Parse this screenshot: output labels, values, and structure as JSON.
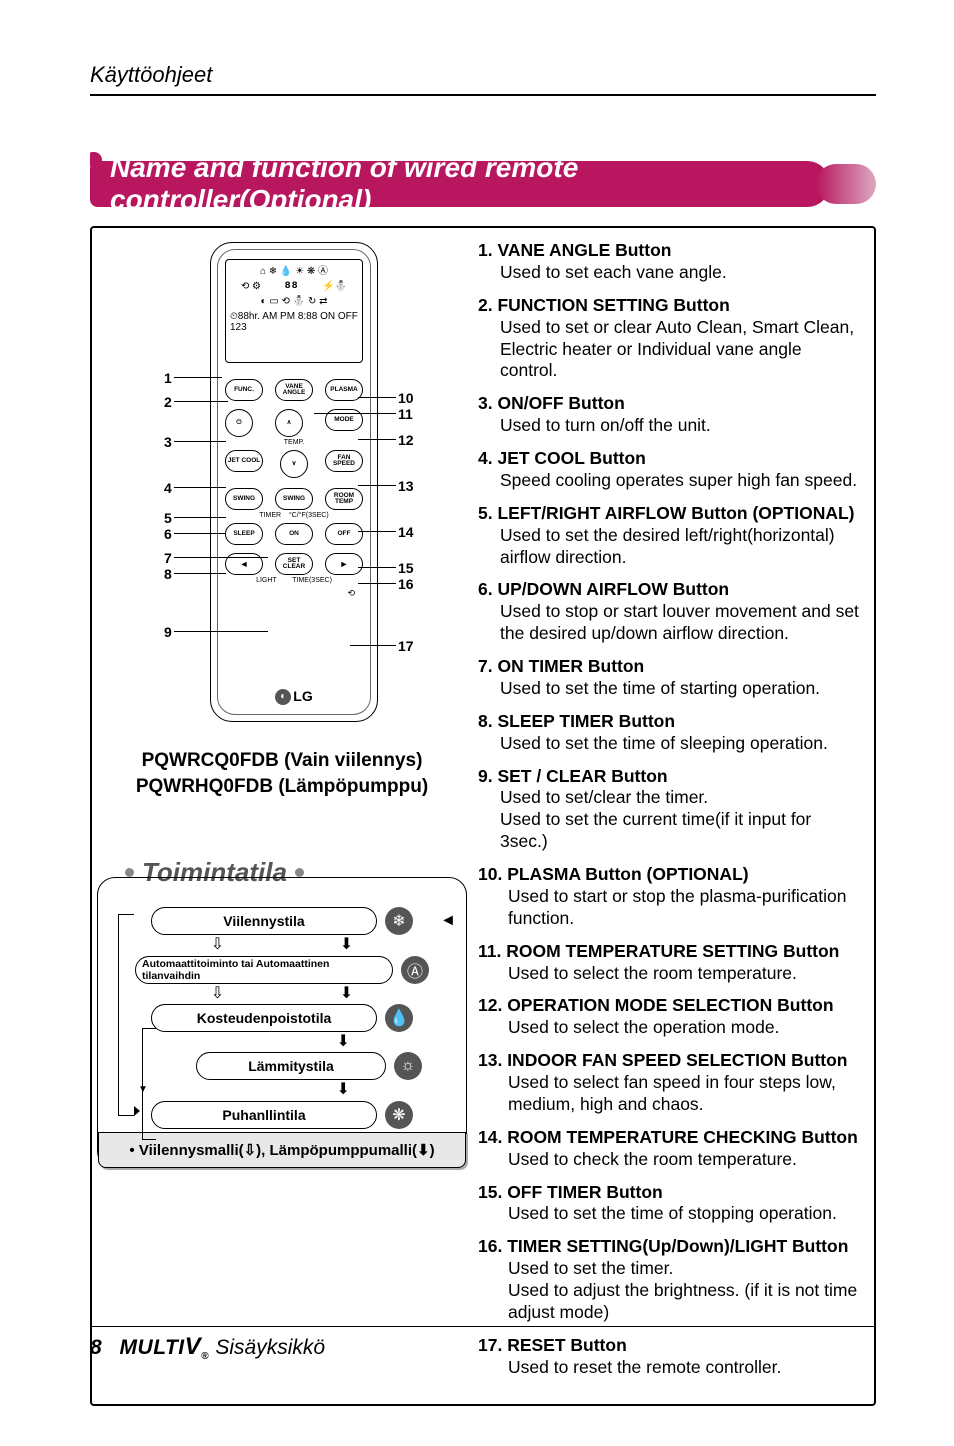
{
  "header": {
    "section": "Käyttöohjeet"
  },
  "banner": {
    "title": "Name and function of wired remote controller(Optional)"
  },
  "remote": {
    "screen": {
      "row1_icons": "⌂ ❄ 💧 ☀ ❋ Ⓐ",
      "row2_big": "88",
      "row3_icons": "⟲ ⚙ 88 ⚡",
      "row4_icons": "◐ ▭ ⟲ ⛄ ↻ ⇄",
      "row5": "⏲88hr. AM PM 8:88 ON OFF 123"
    },
    "buttons": {
      "func": "FUNC.",
      "vane": "VANE\nANGLE",
      "plasma": "PLASMA",
      "power": "⏻",
      "up": "∧",
      "mode": "MODE",
      "jet": "JET\nCOOL",
      "down": "∨",
      "fan": "FAN\nSPEED",
      "swingl": "SWING",
      "swingr": "SWING",
      "room": "ROOM\nTEMP",
      "sleep": "SLEEP",
      "on": "ON",
      "off": "OFF",
      "setclear": "SET\nCLEAR",
      "temp_lbl": "TEMP.",
      "timer_lbl": "TIMER",
      "cfsec_lbl": "°C/°F(3SEC)",
      "light_lbl": "LIGHT",
      "timesec_lbl": "TIME(3SEC)"
    },
    "logo": "LG",
    "callouts_left": [
      "1",
      "2",
      "3",
      "4",
      "5",
      "6",
      "7",
      "8",
      "9"
    ],
    "callouts_right": [
      "10",
      "11",
      "12",
      "13",
      "14",
      "15",
      "16",
      "17"
    ],
    "models": {
      "line1": "PQWRCQ0FDB (Vain viilennys)",
      "line2": "PQWRHQ0FDB (Lämpöpumppu)"
    }
  },
  "flow": {
    "title": "Toimintatila",
    "modes": {
      "cool": "Viilennystila",
      "auto": "Automaattitoiminto tai Automaattinen tilanvaihdin",
      "dehum": "Kosteudenpoistotila",
      "heat": "Lämmitystila",
      "fan": "Puhanllintila"
    },
    "icons": {
      "cool": "❄",
      "auto": "Ⓐ",
      "dehum": "💧",
      "heat": "☼",
      "fan": "❋"
    },
    "footer": "• Viilennysmalli(⇩), Lämpöpumppumalli(⬇)"
  },
  "descriptions": [
    {
      "n": "1",
      "title": "VANE ANGLE Button",
      "body": "Used to set each vane angle."
    },
    {
      "n": "2",
      "title": "FUNCTION SETTING Button",
      "body": "Used to set or clear Auto Clean, Smart Clean, Electric heater or Individual vane angle control."
    },
    {
      "n": "3",
      "title": "ON/OFF Button",
      "body": "Used to turn on/off the unit."
    },
    {
      "n": "4",
      "title": "JET COOL Button",
      "body": "Speed cooling operates super high fan speed."
    },
    {
      "n": "5",
      "title": "LEFT/RIGHT AIRFLOW Button (OPTIONAL)",
      "body": "Used to set the desired left/right(horizontal) airflow direction."
    },
    {
      "n": "6",
      "title": "UP/DOWN AIRFLOW Button",
      "body": "Used to stop or start louver movement and set the desired up/down airflow direction."
    },
    {
      "n": "7",
      "title": "ON TIMER Button",
      "body": "Used to set the time of starting operation."
    },
    {
      "n": "8",
      "title": "SLEEP TIMER Button",
      "body": "Used to set the time of sleeping operation."
    },
    {
      "n": "9",
      "title": "SET / CLEAR Button",
      "body": "Used to set/clear the timer.\nUsed to set the current time(if it input for 3sec.)"
    },
    {
      "n": "10",
      "title": "PLASMA Button (OPTIONAL)",
      "body": "Used to start or stop the plasma-purification function."
    },
    {
      "n": "11",
      "title": "ROOM TEMPERATURE SETTING Button",
      "body": "Used to select the room temperature."
    },
    {
      "n": "12",
      "title": "OPERATION MODE SELECTION Button",
      "body": "Used to select the operation mode."
    },
    {
      "n": "13",
      "title": "INDOOR FAN SPEED SELECTION Button",
      "body": "Used to select fan speed in four steps low, medium, high and chaos."
    },
    {
      "n": "14",
      "title": "ROOM TEMPERATURE CHECKING Button",
      "body": "Used to check the room temperature."
    },
    {
      "n": "15",
      "title": "OFF TIMER Button",
      "body": "Used to set the time of stopping operation."
    },
    {
      "n": "16",
      "title": "TIMER SETTING(Up/Down)/LIGHT Button",
      "body": "Used to set the timer.\nUsed to adjust the brightness. (if it is not time adjust mode)"
    },
    {
      "n": "17",
      "title": "RESET Button",
      "body": "Used to reset the remote controller."
    }
  ],
  "footer": {
    "page": "8",
    "brand": "MULTI",
    "brandV": "V",
    "product": "Sisäyksikkö"
  },
  "colors": {
    "accent": "#b8165f",
    "text": "#000000",
    "grey": "#555555",
    "bg": "#ffffff"
  }
}
